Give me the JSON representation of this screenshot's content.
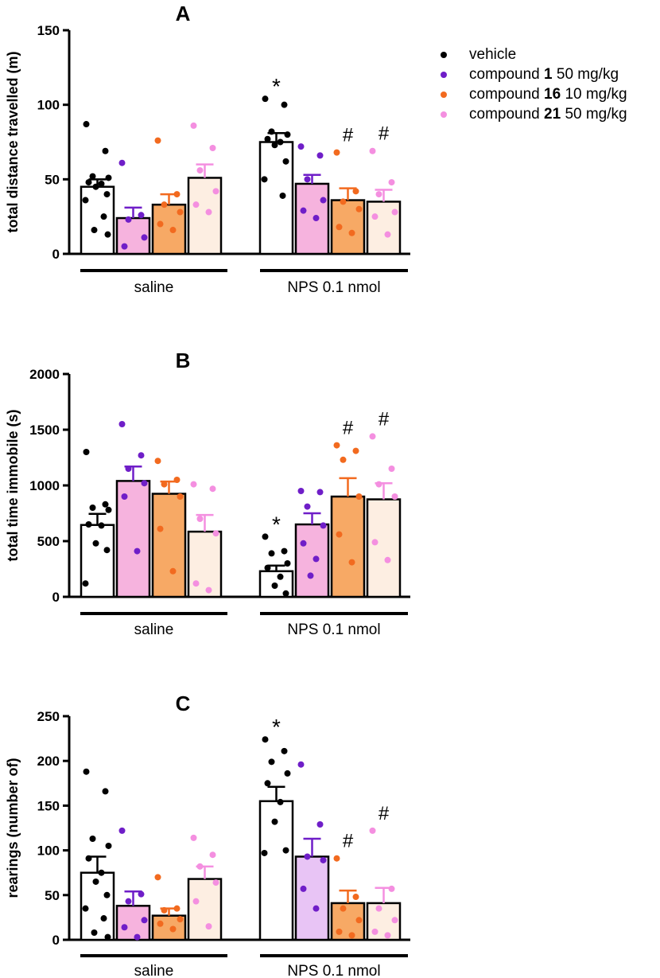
{
  "colors": {
    "vehicle": "#000000",
    "compound1": "#6f1ec8",
    "compound16": "#f26a1f",
    "compound21": "#f48fe0"
  },
  "legend": [
    {
      "key": "vehicle",
      "label": "vehicle",
      "compound": "",
      "dose": ""
    },
    {
      "key": "compound1",
      "label": "compound",
      "compound": "1",
      "dose": "50 mg/kg"
    },
    {
      "key": "compound16",
      "label": "compound",
      "compound": "16",
      "dose": "10 mg/kg"
    },
    {
      "key": "compound21",
      "label": "compound",
      "compound": "21",
      "dose": "50 mg/kg"
    }
  ],
  "chart_data": [
    {
      "type": "bar",
      "panel": "A",
      "title": "A",
      "ylabel": "total distance travelled (m)",
      "ylim": [
        0,
        150
      ],
      "yticks": [
        "0",
        "50",
        "100",
        "150"
      ],
      "groups": [
        "saline",
        "NPS 0.1 nmol"
      ],
      "series": [
        {
          "name": "vehicle",
          "key": "vehicle",
          "values": [
            45,
            75
          ],
          "errors": [
            5,
            6
          ],
          "bar_fill": [
            "#ffffff",
            "#ffffff"
          ],
          "points": [
            [
              87,
              69,
              52,
              51,
              48,
              47,
              45,
              40,
              36,
              25,
              16,
              13
            ],
            [
              104,
              100,
              82,
              80,
              77,
              75,
              73,
              62,
              50,
              39
            ]
          ],
          "marks": [
            "",
            "*"
          ]
        },
        {
          "name": "compound 1 50 mg/kg",
          "key": "compound1",
          "values": [
            24,
            47
          ],
          "errors": [
            7,
            6
          ],
          "bar_fill": [
            "#f6b3de",
            "#f6b3de"
          ],
          "points": [
            [
              61,
              26,
              23,
              11,
              5
            ],
            [
              72,
              66,
              50,
              36,
              29,
              24
            ]
          ],
          "marks": [
            "",
            ""
          ]
        },
        {
          "name": "compound 16 10 mg/kg",
          "key": "compound16",
          "values": [
            33,
            36
          ],
          "errors": [
            7,
            8
          ],
          "bar_fill": [
            "#f7a965",
            "#f7a965"
          ],
          "points": [
            [
              76,
              40,
              33,
              28,
              20,
              16
            ],
            [
              68,
              42,
              35,
              30,
              18,
              14
            ]
          ],
          "marks": [
            "",
            "#"
          ]
        },
        {
          "name": "compound 21 50 mg/kg",
          "key": "compound21",
          "values": [
            51,
            35
          ],
          "errors": [
            9,
            8
          ],
          "bar_fill": [
            "#fdeee2",
            "#fdeee2"
          ],
          "points": [
            [
              86,
              71,
              56,
              42,
              33,
              28
            ],
            [
              69,
              48,
              40,
              28,
              25,
              13
            ]
          ],
          "marks": [
            "",
            "#"
          ]
        }
      ]
    },
    {
      "type": "bar",
      "panel": "B",
      "title": "B",
      "ylabel": "total time immobile (s)",
      "ylim": [
        0,
        2000
      ],
      "yticks": [
        "0",
        "500",
        "1000",
        "1500",
        "2000"
      ],
      "groups": [
        "saline",
        "NPS 0.1 nmol"
      ],
      "series": [
        {
          "name": "vehicle",
          "key": "vehicle",
          "values": [
            645,
            230
          ],
          "errors": [
            100,
            50
          ],
          "bar_fill": [
            "#ffffff",
            "#ffffff"
          ],
          "points": [
            [
              1300,
              830,
              800,
              780,
              650,
              640,
              480,
              420,
              120
            ],
            [
              540,
              410,
              390,
              300,
              260,
              180,
              100,
              30
            ]
          ],
          "marks": [
            "",
            "*"
          ]
        },
        {
          "name": "compound 1 50 mg/kg",
          "key": "compound1",
          "values": [
            1040,
            650
          ],
          "errors": [
            130,
            100
          ],
          "bar_fill": [
            "#f6b3de",
            "#f6b3de"
          ],
          "points": [
            [
              1550,
              1270,
              1150,
              1020,
              900,
              410
            ],
            [
              950,
              940,
              810,
              640,
              480,
              340,
              190
            ]
          ],
          "marks": [
            "",
            ""
          ]
        },
        {
          "name": "compound 16 10 mg/kg",
          "key": "compound16",
          "values": [
            925,
            900
          ],
          "errors": [
            110,
            165
          ],
          "bar_fill": [
            "#f7a965",
            "#f7a965"
          ],
          "points": [
            [
              1220,
              1050,
              1010,
              900,
              610,
              230
            ],
            [
              1360,
              1310,
              1230,
              900,
              560,
              310
            ]
          ],
          "marks": [
            "",
            "#"
          ]
        },
        {
          "name": "compound 21 50 mg/kg",
          "key": "compound21",
          "values": [
            585,
            875
          ],
          "errors": [
            150,
            145
          ],
          "bar_fill": [
            "#fdeee2",
            "#fdeee2"
          ],
          "points": [
            [
              1010,
              970,
              700,
              570,
              120,
              60
            ],
            [
              1440,
              1150,
              1010,
              900,
              490,
              330
            ]
          ],
          "marks": [
            "",
            "#"
          ]
        }
      ]
    },
    {
      "type": "bar",
      "panel": "C",
      "title": "C",
      "ylabel": "rearings (number of)",
      "ylim": [
        0,
        250
      ],
      "yticks": [
        "0",
        "50",
        "100",
        "150",
        "200",
        "250"
      ],
      "groups": [
        "saline",
        "NPS 0.1 nmol"
      ],
      "series": [
        {
          "name": "vehicle",
          "key": "vehicle",
          "values": [
            75,
            155
          ],
          "errors": [
            18,
            16
          ],
          "bar_fill": [
            "#ffffff",
            "#ffffff"
          ],
          "points": [
            [
              188,
              166,
              113,
              105,
              91,
              75,
              65,
              50,
              35,
              24,
              8,
              3
            ],
            [
              224,
              211,
              199,
              186,
              175,
              154,
              132,
              100,
              97
            ]
          ],
          "marks": [
            "",
            "*"
          ]
        },
        {
          "name": "compound 1 50 mg/kg",
          "key": "compound1",
          "values": [
            38,
            93
          ],
          "errors": [
            16,
            20
          ],
          "bar_fill": [
            "#f6b3de",
            "#e8c4f5"
          ],
          "points": [
            [
              122,
              51,
              43,
              22,
              14,
              3
            ],
            [
              196,
              129,
              93,
              89,
              57,
              35
            ]
          ],
          "marks": [
            "",
            ""
          ]
        },
        {
          "name": "compound 16 10 mg/kg",
          "key": "compound16",
          "values": [
            27,
            41
          ],
          "errors": [
            8,
            14
          ],
          "bar_fill": [
            "#f7a965",
            "#f7a965"
          ],
          "points": [
            [
              70,
              35,
              33,
              23,
              18,
              12
            ],
            [
              91,
              48,
              35,
              22,
              9,
              5
            ]
          ],
          "marks": [
            "",
            "#"
          ]
        },
        {
          "name": "compound 21 50 mg/kg",
          "key": "compound21",
          "values": [
            68,
            41
          ],
          "errors": [
            14,
            17
          ],
          "bar_fill": [
            "#fdeee2",
            "#fdeee2"
          ],
          "points": [
            [
              114,
              95,
              82,
              64,
              43,
              15
            ],
            [
              122,
              57,
              35,
              22,
              9,
              5
            ]
          ],
          "marks": [
            "",
            "#"
          ]
        }
      ]
    }
  ]
}
